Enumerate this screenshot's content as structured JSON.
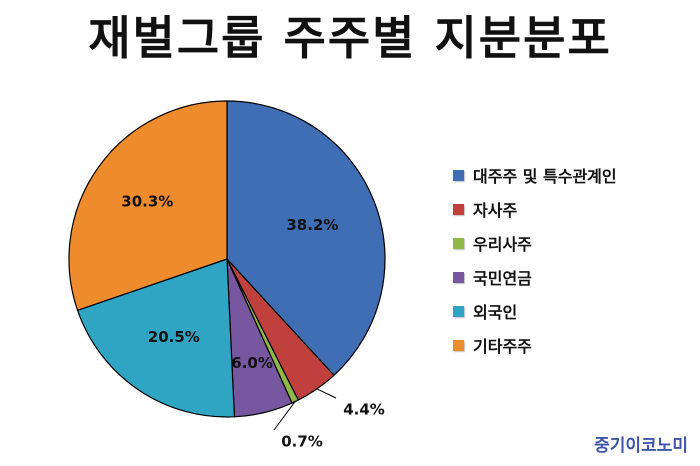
{
  "watermark": "중기이코노미",
  "chart_data": {
    "type": "pie",
    "title": "재벌그룹 주주별 지분분포",
    "start_angle_deg": 0,
    "direction": "clockwise",
    "legend_position": "right",
    "slices": [
      {
        "label": "대주주 및 특수관계인",
        "value": 38.2,
        "display": "38.2%",
        "color": "#3f6eb5"
      },
      {
        "label": "자사주",
        "value": 4.4,
        "display": "4.4%",
        "color": "#c0403d"
      },
      {
        "label": "우리사주",
        "value": 0.7,
        "display": "0.7%",
        "color": "#8fb847"
      },
      {
        "label": "국민연금",
        "value": 6.0,
        "display": "6.0%",
        "color": "#7657a0"
      },
      {
        "label": "외국인",
        "value": 20.5,
        "display": "20.5%",
        "color": "#2fa4c3"
      },
      {
        "label": "기타주주",
        "value": 30.3,
        "display": "30.3%",
        "color": "#ee8b2d"
      }
    ]
  }
}
